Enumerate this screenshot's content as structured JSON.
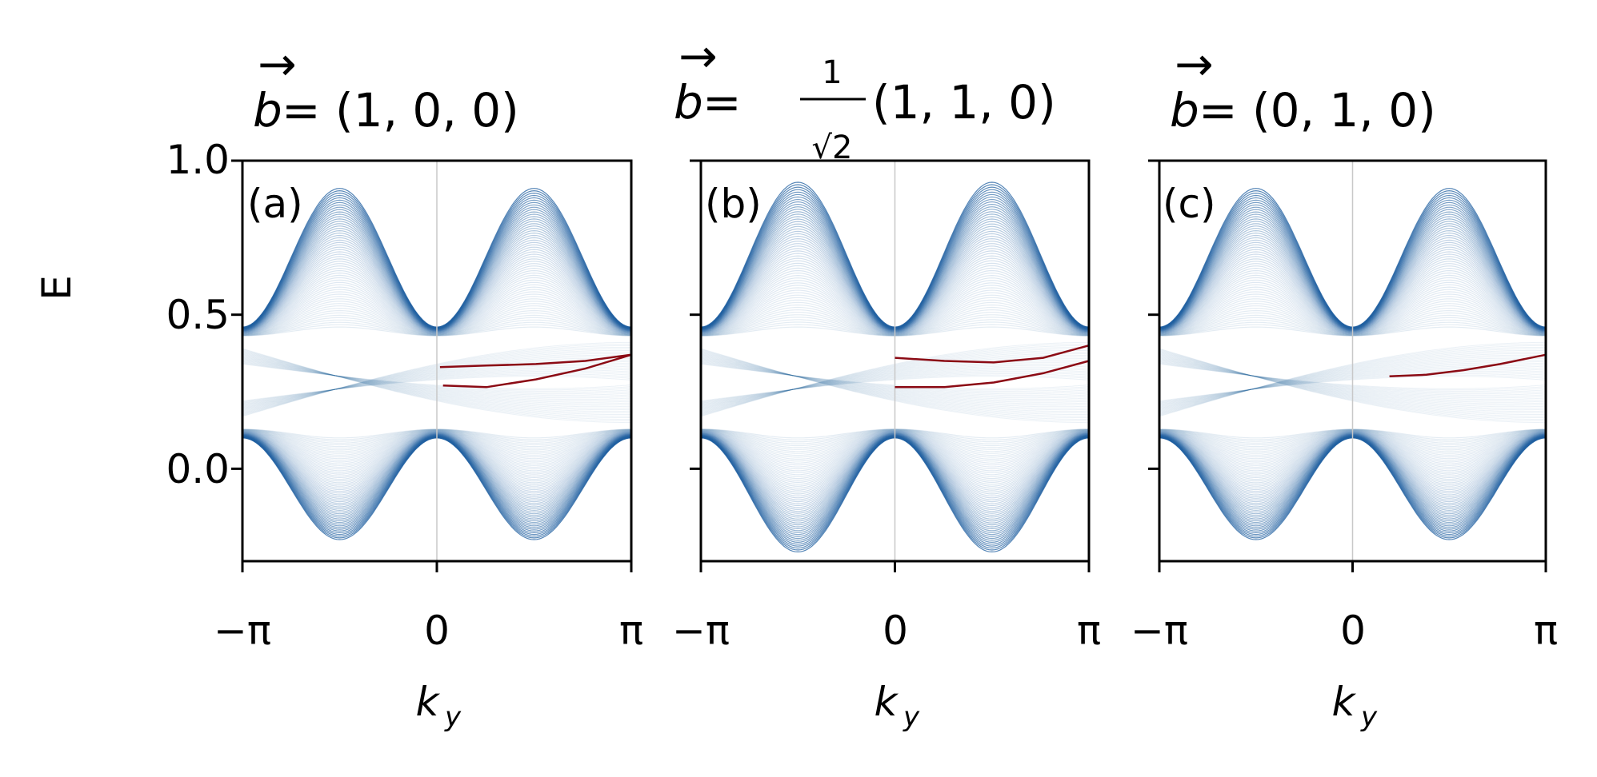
{
  "chart_data": [
    {
      "type": "line",
      "panel_label": "(a)",
      "title": {
        "lhs": "b",
        "rhs": "= (1, 0, 0)"
      },
      "xlabel": {
        "main": "k",
        "sub": "y"
      },
      "ylabel": "E",
      "xticks": [
        "−π",
        "0",
        "π"
      ],
      "yticks": [
        "1.0",
        "0.5",
        "0.0"
      ],
      "ytick_values": [
        1.0,
        0.5,
        0.0
      ],
      "xlim": [
        -3.14159,
        3.14159
      ],
      "ylim": [
        -0.3,
        1.0
      ],
      "bulk_band": {
        "upper_edge_max": 0.91,
        "upper_gap_edge": 0.46,
        "lower_gap_edge": 0.1,
        "lower_edge_min": -0.23,
        "band_width_k0": 0.355
      },
      "surface_states": [
        {
          "x": [
            0.05,
            0.8,
            1.6,
            2.4,
            3.14
          ],
          "y": [
            0.33,
            0.335,
            0.34,
            0.35,
            0.37
          ]
        },
        {
          "x": [
            0.1,
            0.8,
            1.6,
            2.4,
            3.14
          ],
          "y": [
            0.27,
            0.265,
            0.29,
            0.325,
            0.37
          ]
        }
      ],
      "colors": {
        "bulk": "#1f5fa0",
        "surface": "#8b0a14"
      }
    },
    {
      "type": "line",
      "panel_label": "(b)",
      "title": {
        "lhs": "b",
        "rhs_pre": "=",
        "frac_num": "1",
        "frac_den": "√2",
        "rhs_post": "(1, 1, 0)"
      },
      "xlabel": {
        "main": "k",
        "sub": "y"
      },
      "xticks": [
        "−π",
        "0",
        "π"
      ],
      "xlim": [
        -3.14159,
        3.14159
      ],
      "ylim": [
        -0.3,
        1.0
      ],
      "bulk_band": {
        "upper_edge_max": 0.93,
        "upper_gap_edge": 0.46,
        "lower_gap_edge": 0.1,
        "lower_edge_min": -0.27,
        "band_width_k0": 0.36
      },
      "surface_states": [
        {
          "x": [
            0.0,
            0.8,
            1.6,
            2.4,
            3.14
          ],
          "y": [
            0.36,
            0.35,
            0.345,
            0.36,
            0.4
          ]
        },
        {
          "x": [
            0.0,
            0.8,
            1.6,
            2.4,
            3.14
          ],
          "y": [
            0.265,
            0.265,
            0.28,
            0.31,
            0.35
          ]
        }
      ],
      "colors": {
        "bulk": "#1f5fa0",
        "surface": "#8b0a14"
      }
    },
    {
      "type": "line",
      "panel_label": "(c)",
      "title": {
        "lhs": "b",
        "rhs": "= (0, 1, 0)"
      },
      "xlabel": {
        "main": "k",
        "sub": "y"
      },
      "xticks": [
        "−π",
        "0",
        "π"
      ],
      "xlim": [
        -3.14159,
        3.14159
      ],
      "ylim": [
        -0.3,
        1.0
      ],
      "bulk_band": {
        "upper_edge_max": 0.91,
        "upper_gap_edge": 0.46,
        "lower_gap_edge": 0.1,
        "lower_edge_min": -0.23,
        "band_width_k0": 0.355
      },
      "surface_states": [
        {
          "x": [
            0.6,
            1.2,
            1.8,
            2.4,
            3.14
          ],
          "y": [
            0.3,
            0.305,
            0.32,
            0.34,
            0.37
          ]
        }
      ],
      "colors": {
        "bulk": "#1f5fa0",
        "surface": "#8b0a14"
      }
    }
  ]
}
